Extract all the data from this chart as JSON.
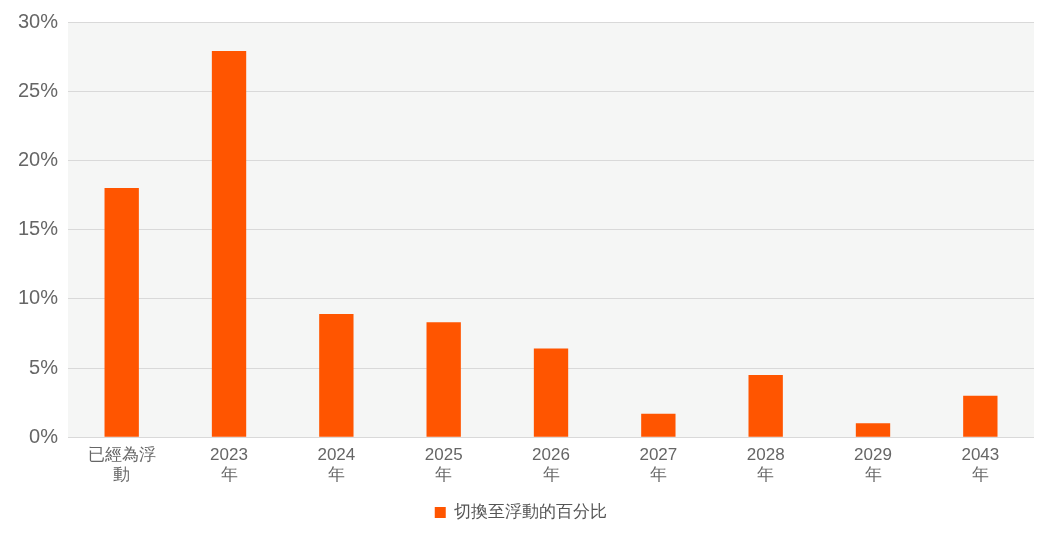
{
  "chart_data": {
    "type": "bar",
    "categories": [
      "已經為浮動",
      "2023年",
      "2024年",
      "2025年",
      "2026年",
      "2027年",
      "2028年",
      "2029年",
      "2043年"
    ],
    "series": [
      {
        "name": "切換至浮動的百分比",
        "color": "#ff5500",
        "values": [
          18.0,
          27.9,
          8.9,
          8.3,
          6.4,
          1.7,
          4.5,
          1.0,
          3.0
        ]
      }
    ],
    "ylim": [
      0,
      30
    ],
    "yticks": [
      {
        "value": 0,
        "label": "0%"
      },
      {
        "value": 5,
        "label": "5%"
      },
      {
        "value": 10,
        "label": "10%"
      },
      {
        "value": 15,
        "label": "15%"
      },
      {
        "value": 20,
        "label": "20%"
      },
      {
        "value": 25,
        "label": "25%"
      },
      {
        "value": 30,
        "label": "30%"
      }
    ],
    "grid": "y",
    "legend": "bottom"
  }
}
